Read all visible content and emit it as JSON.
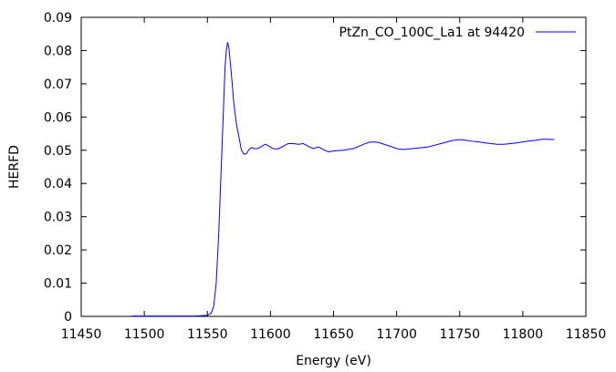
{
  "chart_data": {
    "type": "line",
    "xlabel": "Energy (eV)",
    "ylabel": "HERFD",
    "xlim": [
      11450,
      11850
    ],
    "ylim": [
      0,
      0.09
    ],
    "xticks": [
      11450,
      11500,
      11550,
      11600,
      11650,
      11700,
      11750,
      11800,
      11850
    ],
    "yticks": [
      0,
      0.01,
      0.02,
      0.03,
      0.04,
      0.05,
      0.06,
      0.07,
      0.08,
      0.09
    ],
    "xtick_labels": [
      "11450",
      "11500",
      "11550",
      "11600",
      "11650",
      "11700",
      "11750",
      "11800",
      "11850"
    ],
    "ytick_labels": [
      "0",
      "0.01",
      "0.02",
      "0.03",
      "0.04",
      "0.05",
      "0.06",
      "0.07",
      "0.08",
      "0.09"
    ],
    "legend_position": "top-right",
    "series": [
      {
        "name": "PtZn_CO_100C_La1 at 94420",
        "color": "#0000ff",
        "x": [
          11490,
          11500,
          11520,
          11540,
          11550,
          11553,
          11555,
          11557,
          11559,
          11561,
          11563,
          11564,
          11565,
          11566,
          11567,
          11569,
          11571,
          11573,
          11575,
          11577,
          11579,
          11581,
          11583,
          11585,
          11587,
          11590,
          11593,
          11596,
          11599,
          11602,
          11606,
          11610,
          11614,
          11618,
          11622,
          11626,
          11630,
          11634,
          11638,
          11642,
          11646,
          11650,
          11654,
          11658,
          11662,
          11666,
          11670,
          11674,
          11678,
          11682,
          11686,
          11690,
          11695,
          11700,
          11705,
          11710,
          11715,
          11720,
          11725,
          11730,
          11735,
          11740,
          11745,
          11750,
          11755,
          11760,
          11765,
          11770,
          11775,
          11780,
          11785,
          11790,
          11795,
          11800,
          11805,
          11810,
          11815,
          11820,
          11825
        ],
        "y": [
          0.0001,
          0.0001,
          0.0001,
          0.0001,
          0.0003,
          0.001,
          0.003,
          0.01,
          0.025,
          0.045,
          0.065,
          0.075,
          0.08,
          0.0825,
          0.081,
          0.073,
          0.064,
          0.058,
          0.054,
          0.05,
          0.0488,
          0.049,
          0.0502,
          0.0508,
          0.0505,
          0.0505,
          0.0512,
          0.0518,
          0.0512,
          0.0505,
          0.0504,
          0.0512,
          0.052,
          0.052,
          0.0518,
          0.052,
          0.0512,
          0.0505,
          0.051,
          0.0502,
          0.0495,
          0.0498,
          0.0499,
          0.05,
          0.0503,
          0.0505,
          0.0512,
          0.0518,
          0.0524,
          0.0525,
          0.0523,
          0.0518,
          0.0512,
          0.0505,
          0.0502,
          0.0504,
          0.0506,
          0.0508,
          0.051,
          0.0515,
          0.052,
          0.0525,
          0.053,
          0.0532,
          0.053,
          0.0527,
          0.0525,
          0.0522,
          0.052,
          0.0518,
          0.0518,
          0.052,
          0.0522,
          0.0525,
          0.0528,
          0.053,
          0.0533,
          0.0533,
          0.0532
        ]
      }
    ]
  }
}
